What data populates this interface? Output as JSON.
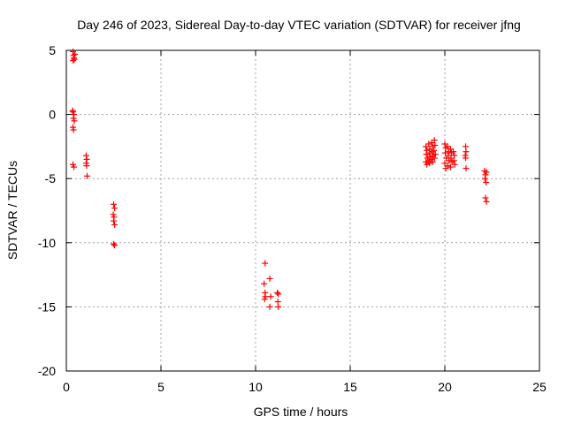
{
  "chart_data": {
    "type": "scatter",
    "title": "Day 246 of 2023, Sidereal Day-to-day VTEC variation (SDTVAR) for receiver jfng",
    "xlabel": "GPS time / hours",
    "ylabel": "SDTVAR / TECUs",
    "xlim": [
      0,
      25
    ],
    "ylim": [
      -20,
      5
    ],
    "x_ticks": [
      0,
      5,
      10,
      15,
      20,
      25
    ],
    "y_ticks": [
      -20,
      -15,
      -10,
      -5,
      0,
      5
    ],
    "x_tick_labels": [
      "0",
      "5",
      "10",
      "15",
      "20",
      "25"
    ],
    "y_tick_labels": [
      "-20",
      "-15",
      "-10",
      "-5",
      "0",
      "5"
    ],
    "grid": true,
    "marker": "plus",
    "color": "#ff0000",
    "series": [
      {
        "name": "SDTVAR",
        "points": [
          [
            0.35,
            4.9
          ],
          [
            0.38,
            4.6
          ],
          [
            0.4,
            4.4
          ],
          [
            0.42,
            4.3
          ],
          [
            0.45,
            4.7
          ],
          [
            0.36,
            4.2
          ],
          [
            0.33,
            0.3
          ],
          [
            0.36,
            0.2
          ],
          [
            0.4,
            0.0
          ],
          [
            0.38,
            -0.3
          ],
          [
            0.42,
            -0.5
          ],
          [
            0.35,
            -1.0
          ],
          [
            0.38,
            -1.2
          ],
          [
            0.35,
            -3.9
          ],
          [
            0.4,
            -4.1
          ],
          [
            1.05,
            -3.2
          ],
          [
            1.08,
            -3.5
          ],
          [
            1.05,
            -3.8
          ],
          [
            1.07,
            -4.0
          ],
          [
            1.1,
            -4.8
          ],
          [
            2.5,
            -7.0
          ],
          [
            2.55,
            -7.3
          ],
          [
            2.48,
            -7.8
          ],
          [
            2.52,
            -8.0
          ],
          [
            2.5,
            -8.3
          ],
          [
            2.55,
            -8.6
          ],
          [
            2.5,
            -10.1
          ],
          [
            2.55,
            -10.2
          ],
          [
            10.5,
            -11.6
          ],
          [
            10.45,
            -13.2
          ],
          [
            10.5,
            -13.9
          ],
          [
            10.52,
            -14.2
          ],
          [
            10.48,
            -14.4
          ],
          [
            10.75,
            -12.8
          ],
          [
            10.8,
            -14.2
          ],
          [
            10.75,
            -15.0
          ],
          [
            11.15,
            -13.9
          ],
          [
            11.2,
            -14.0
          ],
          [
            11.18,
            -14.6
          ],
          [
            11.2,
            -15.0
          ],
          [
            19.0,
            -2.5
          ],
          [
            19.05,
            -2.8
          ],
          [
            19.02,
            -3.1
          ],
          [
            19.08,
            -3.4
          ],
          [
            19.0,
            -3.7
          ],
          [
            19.05,
            -3.9
          ],
          [
            19.15,
            -2.3
          ],
          [
            19.2,
            -2.7
          ],
          [
            19.18,
            -3.0
          ],
          [
            19.22,
            -3.3
          ],
          [
            19.15,
            -3.6
          ],
          [
            19.2,
            -3.8
          ],
          [
            19.3,
            -2.2
          ],
          [
            19.35,
            -2.5
          ],
          [
            19.32,
            -2.9
          ],
          [
            19.38,
            -3.2
          ],
          [
            19.3,
            -3.5
          ],
          [
            19.35,
            -3.7
          ],
          [
            19.45,
            -2.0
          ],
          [
            19.48,
            -2.4
          ],
          [
            19.42,
            -2.8
          ],
          [
            19.5,
            -3.1
          ],
          [
            19.45,
            -3.4
          ],
          [
            20.0,
            -2.3
          ],
          [
            20.05,
            -2.6
          ],
          [
            20.02,
            -3.0
          ],
          [
            20.08,
            -3.4
          ],
          [
            20.0,
            -3.8
          ],
          [
            20.05,
            -4.2
          ],
          [
            20.15,
            -2.5
          ],
          [
            20.2,
            -2.9
          ],
          [
            20.18,
            -3.2
          ],
          [
            20.22,
            -3.6
          ],
          [
            20.15,
            -4.0
          ],
          [
            20.3,
            -2.7
          ],
          [
            20.35,
            -3.0
          ],
          [
            20.32,
            -3.4
          ],
          [
            20.38,
            -3.7
          ],
          [
            20.3,
            -4.1
          ],
          [
            20.45,
            -2.9
          ],
          [
            20.5,
            -3.2
          ],
          [
            20.48,
            -3.6
          ],
          [
            20.52,
            -3.9
          ],
          [
            21.1,
            -2.5
          ],
          [
            21.12,
            -2.9
          ],
          [
            21.08,
            -3.2
          ],
          [
            21.1,
            -3.4
          ],
          [
            21.12,
            -4.2
          ],
          [
            22.1,
            -4.4
          ],
          [
            22.15,
            -4.7
          ],
          [
            22.12,
            -5.0
          ],
          [
            22.18,
            -5.3
          ],
          [
            22.2,
            -4.5
          ],
          [
            22.15,
            -6.5
          ],
          [
            22.2,
            -6.8
          ]
        ]
      }
    ]
  }
}
